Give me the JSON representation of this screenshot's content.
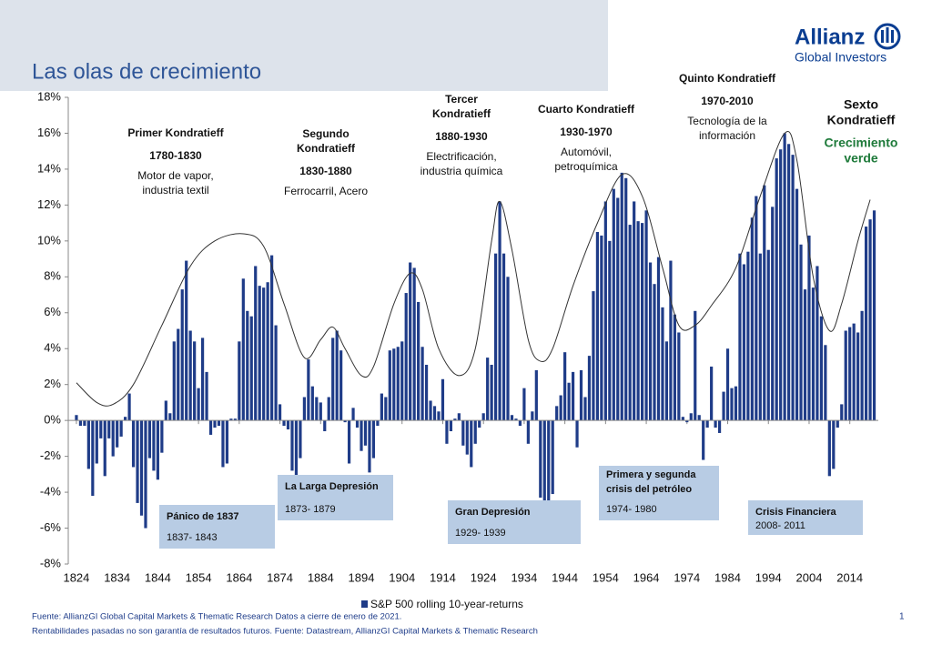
{
  "header": {
    "title": "Las olas de crecimiento",
    "logo": "Allianz",
    "logo_sub": "Global Investors"
  },
  "chart_data": {
    "type": "bar",
    "color": "#1f3c88",
    "x": [
      1824,
      1825,
      1826,
      1827,
      1828,
      1829,
      1830,
      1831,
      1832,
      1833,
      1834,
      1835,
      1836,
      1837,
      1838,
      1839,
      1840,
      1841,
      1842,
      1843,
      1844,
      1845,
      1846,
      1847,
      1848,
      1849,
      1850,
      1851,
      1852,
      1853,
      1854,
      1855,
      1856,
      1857,
      1858,
      1859,
      1860,
      1861,
      1862,
      1863,
      1864,
      1865,
      1866,
      1867,
      1868,
      1869,
      1870,
      1871,
      1872,
      1873,
      1874,
      1875,
      1876,
      1877,
      1878,
      1879,
      1880,
      1881,
      1882,
      1883,
      1884,
      1885,
      1886,
      1887,
      1888,
      1889,
      1890,
      1891,
      1892,
      1893,
      1894,
      1895,
      1896,
      1897,
      1898,
      1899,
      1900,
      1901,
      1902,
      1903,
      1904,
      1905,
      1906,
      1907,
      1908,
      1909,
      1910,
      1911,
      1912,
      1913,
      1914,
      1915,
      1916,
      1917,
      1918,
      1919,
      1920,
      1921,
      1922,
      1923,
      1924,
      1925,
      1926,
      1927,
      1928,
      1929,
      1930,
      1931,
      1932,
      1933,
      1934,
      1935,
      1936,
      1937,
      1938,
      1939,
      1940,
      1941,
      1942,
      1943,
      1944,
      1945,
      1946,
      1947,
      1948,
      1949,
      1950,
      1951,
      1952,
      1953,
      1954,
      1955,
      1956,
      1957,
      1958,
      1959,
      1960,
      1961,
      1962,
      1963,
      1964,
      1965,
      1966,
      1967,
      1968,
      1969,
      1970,
      1971,
      1972,
      1973,
      1974,
      1975,
      1976,
      1977,
      1978,
      1979,
      1980,
      1981,
      1982,
      1983,
      1984,
      1985,
      1986,
      1987,
      1988,
      1989,
      1990,
      1991,
      1992,
      1993,
      1994,
      1995,
      1996,
      1997,
      1998,
      1999,
      2000,
      2001,
      2002,
      2003,
      2004,
      2005,
      2006,
      2007,
      2008,
      2009,
      2010,
      2011,
      2012,
      2013,
      2014,
      2015,
      2016,
      2017,
      2018,
      2019,
      2020
    ],
    "series": [
      {
        "name": "S&P 500 rolling 10-year-returns",
        "color": "#1f3c88",
        "values": [
          0.3,
          -0.3,
          -0.3,
          -2.7,
          -4.2,
          -2.4,
          -1.0,
          -3.1,
          -1.0,
          -2.0,
          -1.5,
          -0.9,
          0.2,
          1.5,
          -2.6,
          -4.6,
          -5.3,
          -6.0,
          -2.1,
          -2.8,
          -3.3,
          -1.8,
          1.1,
          0.4,
          4.4,
          5.1,
          7.3,
          8.9,
          5.0,
          4.4,
          1.8,
          4.6,
          2.7,
          -0.8,
          -0.4,
          -0.3,
          -2.6,
          -2.4,
          0.1,
          0.1,
          4.4,
          7.9,
          6.1,
          5.8,
          8.6,
          7.5,
          7.4,
          7.7,
          9.2,
          5.3,
          0.9,
          -0.3,
          -0.5,
          -2.8,
          -3.3,
          -2.1,
          1.3,
          3.4,
          1.9,
          1.3,
          1.0,
          -0.6,
          1.3,
          4.6,
          5.0,
          3.9,
          -0.1,
          -2.4,
          0.7,
          -0.4,
          -1.7,
          -1.4,
          -2.9,
          -2.1,
          -0.3,
          1.5,
          1.3,
          3.9,
          4.0,
          4.1,
          4.4,
          7.1,
          8.8,
          8.5,
          6.6,
          4.1,
          3.1,
          1.1,
          0.8,
          0.5,
          2.3,
          -1.3,
          -0.6,
          0.1,
          0.4,
          -1.4,
          -1.9,
          -2.6,
          -1.3,
          -0.4,
          0.4,
          3.5,
          3.1,
          9.3,
          12.2,
          9.3,
          8.0,
          0.3,
          0.1,
          -0.3,
          1.8,
          -1.3,
          0.5,
          2.8,
          -4.3,
          -6.7,
          -5.6,
          -4.1,
          0.8,
          1.4,
          3.8,
          2.1,
          2.7,
          -1.5,
          2.8,
          1.3,
          3.6,
          7.2,
          10.5,
          10.3,
          12.2,
          10.0,
          12.9,
          12.4,
          13.8,
          13.5,
          10.9,
          12.2,
          11.1,
          11.0,
          11.7,
          8.8,
          7.6,
          9.1,
          6.3,
          4.4,
          8.9,
          5.9,
          4.9,
          0.2,
          -0.1,
          0.4,
          6.1,
          0.3,
          -2.2,
          -0.4,
          3.0,
          -0.4,
          -0.7,
          1.6,
          4.0,
          1.8,
          1.9,
          9.3,
          8.7,
          9.4,
          11.3,
          12.5,
          9.3,
          13.1,
          9.5,
          11.9,
          14.6,
          15.1,
          16.0,
          15.4,
          14.8,
          12.9,
          9.8,
          7.3,
          10.3,
          7.4,
          8.6,
          5.8,
          4.2,
          -3.1,
          -2.7,
          -0.4,
          0.9,
          5.0,
          5.2,
          5.4,
          4.9,
          6.1,
          10.8,
          11.2,
          11.7
        ]
      }
    ],
    "wave": {
      "x": [
        1824,
        1829,
        1833,
        1838,
        1845,
        1852,
        1858,
        1865,
        1870,
        1875,
        1880,
        1884,
        1887,
        1890,
        1894,
        1897,
        1902,
        1906,
        1909,
        1913,
        1918,
        1922,
        1926,
        1928,
        1931,
        1935,
        1938,
        1941,
        1946,
        1952,
        1958,
        1963,
        1968,
        1972,
        1976,
        1980,
        1986,
        1992,
        1998,
        2001,
        2005,
        2009,
        2012,
        2016,
        2019
      ],
      "values": [
        2.1,
        1.0,
        0.9,
        2.0,
        5.3,
        8.6,
        10.0,
        10.4,
        9.7,
        6.5,
        3.5,
        4.5,
        5.2,
        4.0,
        2.5,
        3.0,
        6.5,
        8.2,
        7.3,
        4.0,
        2.5,
        4.0,
        10.0,
        12.2,
        9.5,
        4.5,
        3.3,
        4.0,
        7.5,
        11.0,
        13.7,
        12.5,
        8.5,
        5.3,
        5.3,
        6.4,
        8.5,
        12.5,
        16.0,
        14.5,
        8.0,
        5.0,
        6.5,
        10.0,
        12.3
      ],
      "color": "#333333"
    },
    "xlim": [
      1822,
      2021
    ],
    "xticks": [
      1824,
      1834,
      1844,
      1854,
      1864,
      1874,
      1884,
      1894,
      1904,
      1914,
      1924,
      1934,
      1944,
      1954,
      1964,
      1974,
      1984,
      1994,
      2004,
      2014
    ],
    "ylim": [
      -8,
      18
    ],
    "yticks": [
      {
        "value": -8,
        "label": "-8%"
      },
      {
        "value": -6,
        "label": "-6%"
      },
      {
        "value": -4,
        "label": "-4%"
      },
      {
        "value": -2,
        "label": "-2%"
      },
      {
        "value": 0,
        "label": "0%"
      },
      {
        "value": 2,
        "label": "2%"
      },
      {
        "value": 4,
        "label": "4%"
      },
      {
        "value": 6,
        "label": "6%"
      },
      {
        "value": 8,
        "label": "8%"
      },
      {
        "value": 10,
        "label": "10%"
      },
      {
        "value": 12,
        "label": "12%"
      },
      {
        "value": 14,
        "label": "14%"
      },
      {
        "value": 16,
        "label": "16%"
      },
      {
        "value": 18,
        "label": "18%"
      }
    ],
    "legend": "bottom",
    "eras": [
      {
        "name": [
          "Primer Kondratieff"
        ],
        "years": "1780-1830",
        "desc": [
          "Motor de vapor,",
          "industria textil"
        ]
      },
      {
        "name": [
          "Segundo",
          "Kondratieff"
        ],
        "years": "1830-1880",
        "desc": [
          "Ferrocarril,  Acero"
        ]
      },
      {
        "name": [
          "Tercer",
          "Kondratieff"
        ],
        "years": "1880-1930",
        "desc": [
          "Electrificación,",
          "industria química"
        ]
      },
      {
        "name": [
          "Cuarto Kondratieff"
        ],
        "years": "1930-1970",
        "desc": [
          "Automóvil,",
          "petroquímica"
        ]
      },
      {
        "name": [
          "Quinto Kondratieff"
        ],
        "years": "1970-2010",
        "desc": [
          "Tecnología  de la",
          "información"
        ]
      },
      {
        "name": [
          "Sexto",
          "Kondratieff"
        ],
        "desc": [
          "Crecimiento",
          "verde"
        ],
        "desc_color": "#1e7a3a"
      }
    ],
    "crises": [
      {
        "name": [
          "Pánico de 1837"
        ],
        "years": "1837- 1843"
      },
      {
        "name": [
          "La Larga Depresión"
        ],
        "years": "1873- 1879"
      },
      {
        "name": [
          "Gran Depresión"
        ],
        "years": "1929- 1939"
      },
      {
        "name": [
          "Primera y segunda",
          "crisis del petróleo"
        ],
        "years": "1974- 1980"
      },
      {
        "name": [
          "Crisis Financiera"
        ],
        "years": "2008- 2011"
      }
    ]
  },
  "footer": {
    "notes": [
      "Fuente: AllianzGI Global Capital Markets & Thematic Research Datos a cierre de enero de 2021.",
      "Rentabilidades pasadas no son garantía de resultados futuros. Fuente: Datastream, AllianzGI Capital Markets & Thematic Research"
    ],
    "page": "1"
  }
}
